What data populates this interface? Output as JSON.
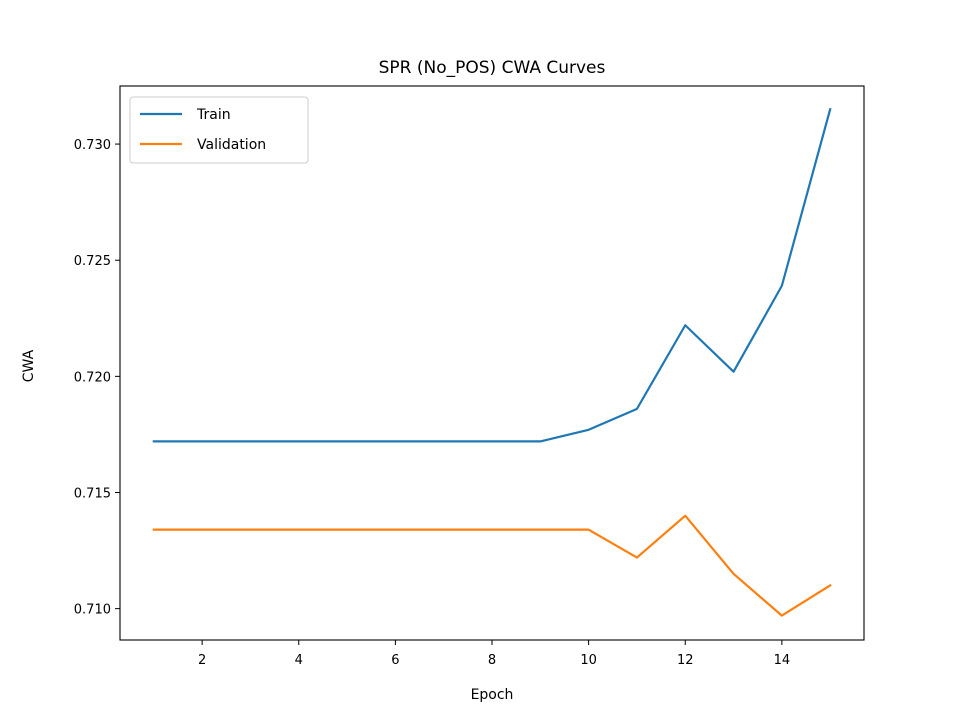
{
  "chart_data": {
    "type": "line",
    "title": "SPR (No_POS) CWA Curves",
    "xlabel": "Epoch",
    "ylabel": "CWA",
    "x": [
      1,
      2,
      3,
      4,
      5,
      6,
      7,
      8,
      9,
      10,
      11,
      12,
      13,
      14,
      15
    ],
    "xlim": [
      0.3,
      15.7
    ],
    "ylim": [
      0.70865,
      0.7325
    ],
    "xticks": [
      2,
      4,
      6,
      8,
      10,
      12,
      14
    ],
    "yticks": [
      0.71,
      0.715,
      0.72,
      0.725,
      0.73
    ],
    "ytick_labels": [
      "0.710",
      "0.715",
      "0.720",
      "0.725",
      "0.730"
    ],
    "grid": false,
    "legend_position": "top-left",
    "series": [
      {
        "name": "Train",
        "color": "#1f77b4",
        "values": [
          0.7172,
          0.7172,
          0.7172,
          0.7172,
          0.7172,
          0.7172,
          0.7172,
          0.7172,
          0.7172,
          0.7177,
          0.7186,
          0.7222,
          0.7202,
          0.7239,
          0.7315
        ]
      },
      {
        "name": "Validation",
        "color": "#ff7f0e",
        "values": [
          0.7134,
          0.7134,
          0.7134,
          0.7134,
          0.7134,
          0.7134,
          0.7134,
          0.7134,
          0.7134,
          0.7134,
          0.7122,
          0.714,
          0.7115,
          0.7097,
          0.711
        ]
      }
    ]
  }
}
